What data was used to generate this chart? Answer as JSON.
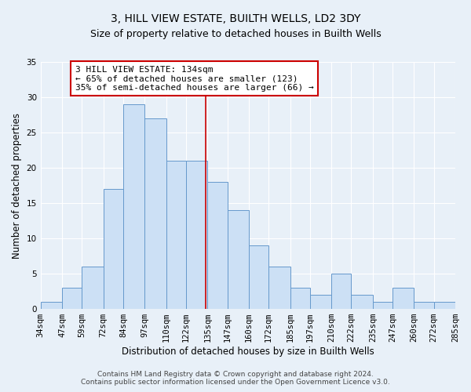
{
  "title": "3, HILL VIEW ESTATE, BUILTH WELLS, LD2 3DY",
  "subtitle": "Size of property relative to detached houses in Builth Wells",
  "xlabel": "Distribution of detached houses by size in Builth Wells",
  "ylabel": "Number of detached properties",
  "bar_color": "#cce0f5",
  "bar_edge_color": "#6699cc",
  "bin_labels": [
    "34sqm",
    "47sqm",
    "59sqm",
    "72sqm",
    "84sqm",
    "97sqm",
    "110sqm",
    "122sqm",
    "135sqm",
    "147sqm",
    "160sqm",
    "172sqm",
    "185sqm",
    "197sqm",
    "210sqm",
    "222sqm",
    "235sqm",
    "247sqm",
    "260sqm",
    "272sqm",
    "285sqm"
  ],
  "bin_edges": [
    34,
    47,
    59,
    72,
    84,
    97,
    110,
    122,
    135,
    147,
    160,
    172,
    185,
    197,
    210,
    222,
    235,
    247,
    260,
    272,
    285
  ],
  "counts": [
    1,
    3,
    6,
    17,
    29,
    27,
    21,
    21,
    18,
    14,
    9,
    6,
    3,
    2,
    5,
    2,
    1,
    3,
    1,
    1
  ],
  "property_size": 134,
  "vline_color": "#cc0000",
  "annotation_text": "3 HILL VIEW ESTATE: 134sqm\n← 65% of detached houses are smaller (123)\n35% of semi-detached houses are larger (66) →",
  "annotation_box_color": "#ffffff",
  "annotation_box_edge": "#cc0000",
  "ylim": [
    0,
    35
  ],
  "yticks": [
    0,
    5,
    10,
    15,
    20,
    25,
    30,
    35
  ],
  "background_color": "#e8f0f8",
  "footer": "Contains HM Land Registry data © Crown copyright and database right 2024.\nContains public sector information licensed under the Open Government Licence v3.0.",
  "title_fontsize": 10,
  "subtitle_fontsize": 9,
  "xlabel_fontsize": 8.5,
  "ylabel_fontsize": 8.5,
  "tick_fontsize": 7.5,
  "annotation_fontsize": 8,
  "footer_fontsize": 6.5
}
